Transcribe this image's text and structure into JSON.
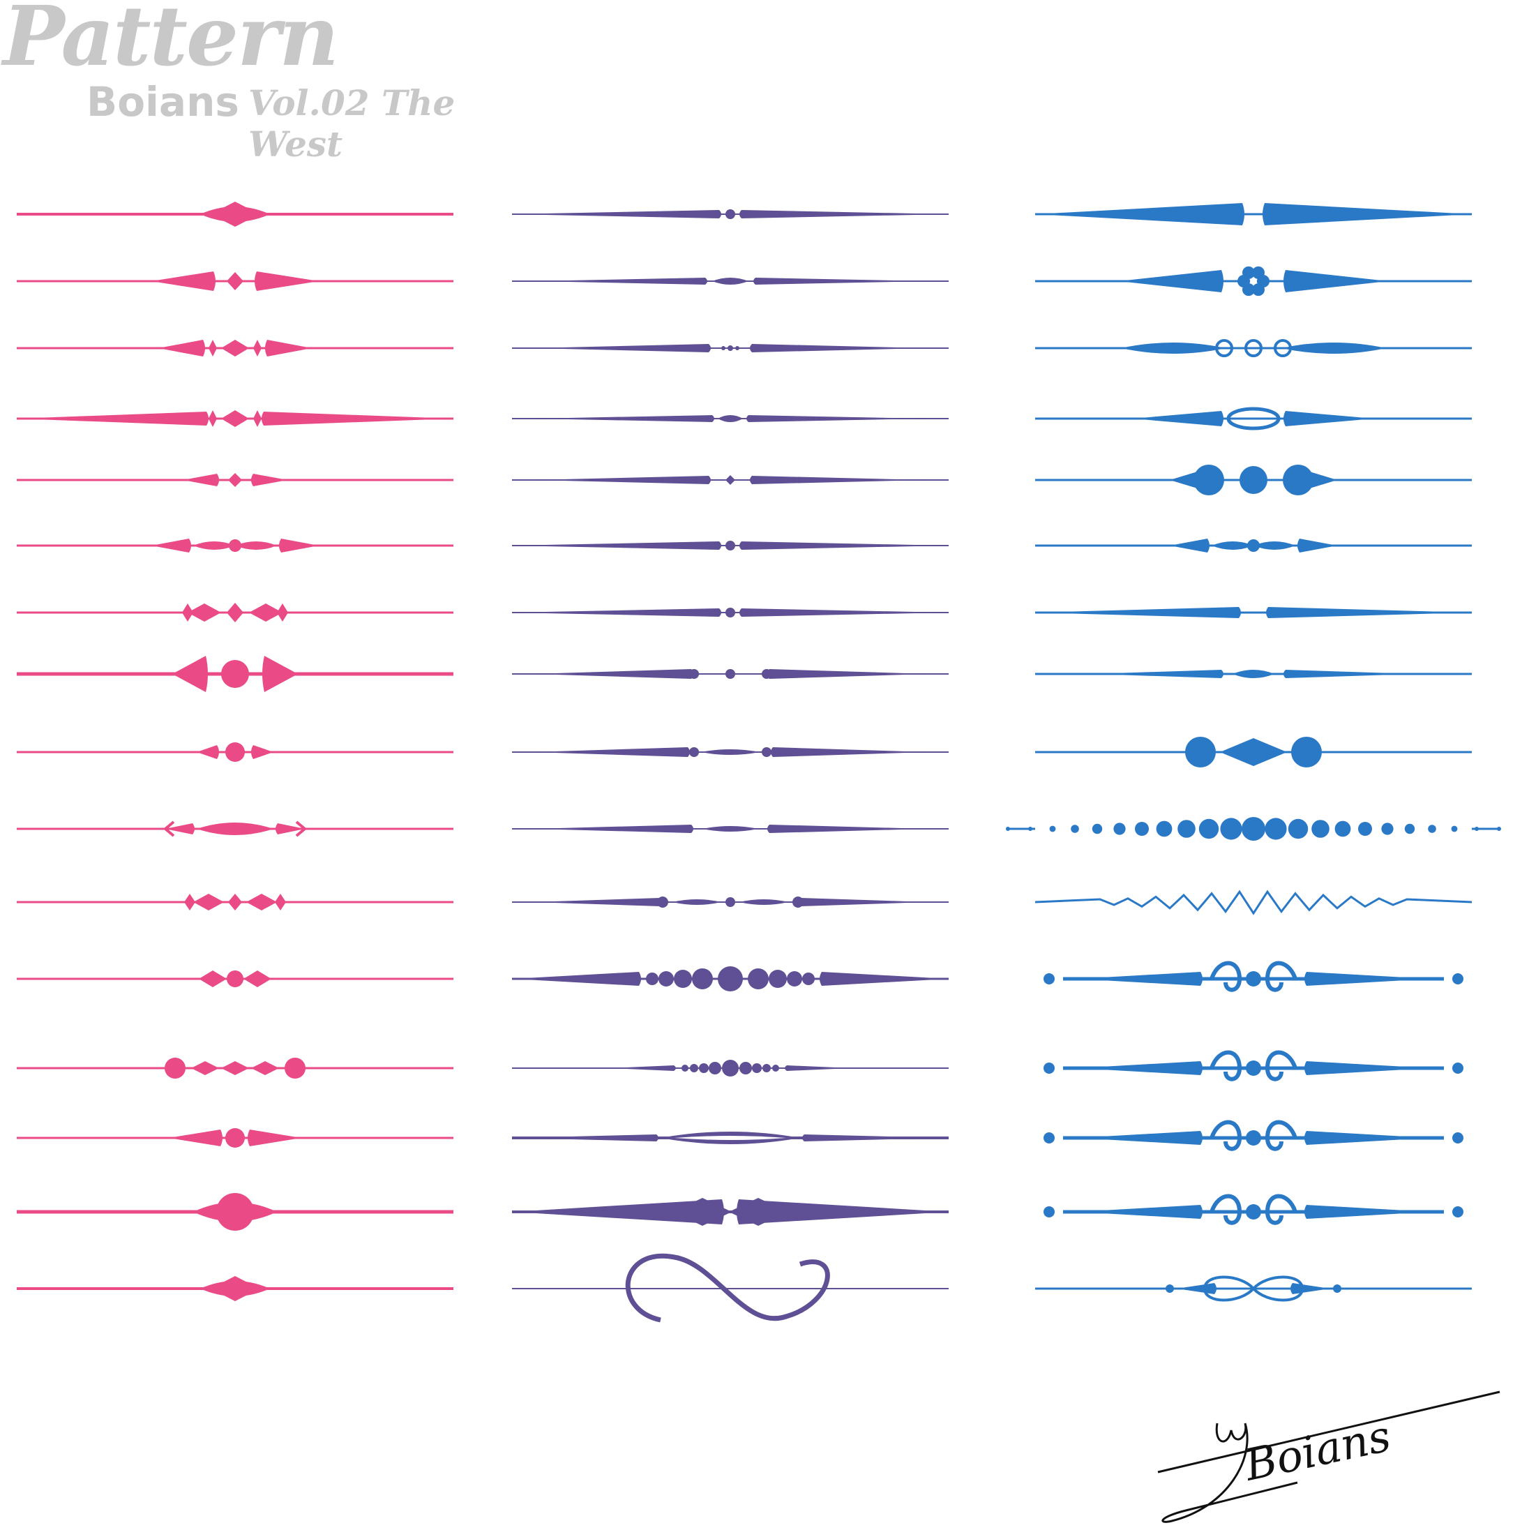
{
  "header": {
    "title": "Pattern",
    "brand": "Boians",
    "subtitle": "Vol.02 The West"
  },
  "signature": {
    "text": "Boians"
  },
  "colors": {
    "pink": "#ea4a86",
    "purple": "#5f4f94",
    "blue": "#2a79c7",
    "title_gray": "#c8c8c8",
    "signature": "#111111"
  },
  "columns": [
    {
      "name": "pink-dividers",
      "color": "pink",
      "styles": [
        "diamond",
        "three-diamonds",
        "diamond-chain",
        "long-taper-diamonds",
        "small-diamond",
        "wave-beads",
        "diamond-row",
        "bracket-circle",
        "teardrop-dot",
        "arrow-ends",
        "diamond-row-small",
        "circle-diamonds",
        "dot-diamonds",
        "center-dot-diamond",
        "big-circle",
        "diamond"
      ]
    },
    {
      "name": "purple-dividers",
      "color": "purple",
      "styles": [
        "taper-dot",
        "taper-bead",
        "taper-dots",
        "taper-oval",
        "taper-small-diamond",
        "taper-dot",
        "taper-dot",
        "taper-three-dots",
        "taper-two-dots",
        "taper-lens",
        "dot-lens",
        "bead-chain",
        "crescent-beads",
        "slim-lens",
        "big-taper-diamond",
        "infinity-swash"
      ]
    },
    {
      "name": "blue-dividers",
      "color": "blue",
      "styles": [
        "big-taper",
        "flower",
        "loop-rings",
        "loops-oval",
        "three-discs",
        "wave-beads",
        "taper-notch",
        "wave-small",
        "disc-diamond-disc",
        "graduated-beads",
        "zigzag",
        "scroll-ornament",
        "scroll-ornament",
        "scroll-ornament",
        "scroll-ornament",
        "infinity-loop"
      ]
    }
  ]
}
